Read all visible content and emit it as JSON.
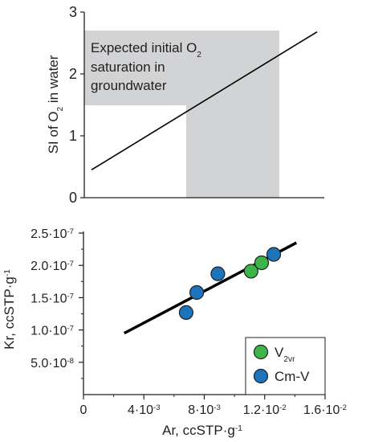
{
  "chart_data": [
    {
      "type": "line",
      "title": "",
      "xlabel": "",
      "ylabel": {
        "prefix": "SI of O",
        "sub": "2",
        "suffix": " in water"
      },
      "ylim": [
        0,
        3
      ],
      "yticks": [
        "0",
        "1",
        "2",
        "3"
      ],
      "shaded_region": {
        "label_lines": [
          {
            "text": "Expected initial O",
            "sub": "2"
          },
          {
            "text": "saturation in",
            "sub": ""
          },
          {
            "text": "groundwater",
            "sub": ""
          }
        ],
        "color": "#d1d3d4"
      },
      "series": [
        {
          "points": [
            [
              0.03,
              0.45
            ],
            [
              0.97,
              2.68
            ]
          ],
          "color": "#000000"
        }
      ]
    },
    {
      "type": "scatter",
      "title": "",
      "xlabel": "Ar, ccSTP·g",
      "xlabel_sup": "-1",
      "ylabel": "Kr, ccSTP·g",
      "ylabel_sup": "-1",
      "xlim": [
        0,
        0.016
      ],
      "ylim": [
        0,
        2.5e-07
      ],
      "xticks": [
        {
          "value": 0,
          "label": "0",
          "exp": ""
        },
        {
          "value": 0.004,
          "label": "4·10",
          "exp": "-3"
        },
        {
          "value": 0.008,
          "label": "8·10",
          "exp": "-3"
        },
        {
          "value": 0.012,
          "label": "1.2·10",
          "exp": "-2"
        },
        {
          "value": 0.016,
          "label": "1.6·10",
          "exp": "-2"
        }
      ],
      "yticks": [
        {
          "value": 5e-08,
          "label": "5.0·10",
          "exp": "-8"
        },
        {
          "value": 1e-07,
          "label": "1.0·10",
          "exp": "-7"
        },
        {
          "value": 1.5e-07,
          "label": "1.5·10",
          "exp": "-7"
        },
        {
          "value": 2e-07,
          "label": "2.0·10",
          "exp": "-7"
        },
        {
          "value": 2.5e-07,
          "label": "2.5·10",
          "exp": "-7"
        }
      ],
      "trendline": {
        "points": [
          [
            0.0027,
            9.5e-08
          ],
          [
            0.0141,
            2.35e-07
          ]
        ],
        "color": "#000000"
      },
      "series": [
        {
          "name": "V",
          "name_sub": "2vr",
          "color": "#3db54a",
          "points": [
            [
              0.0111,
              1.91e-07
            ],
            [
              0.0118,
              2.04e-07
            ]
          ]
        },
        {
          "name": "Cm-V",
          "name_sub": "",
          "color": "#1c75bc",
          "points": [
            [
              0.0068,
              1.27e-07
            ],
            [
              0.0075,
              1.58e-07
            ],
            [
              0.0089,
              1.87e-07
            ],
            [
              0.0126,
              2.17e-07
            ]
          ]
        }
      ],
      "legend_position": "bottom-right"
    }
  ]
}
